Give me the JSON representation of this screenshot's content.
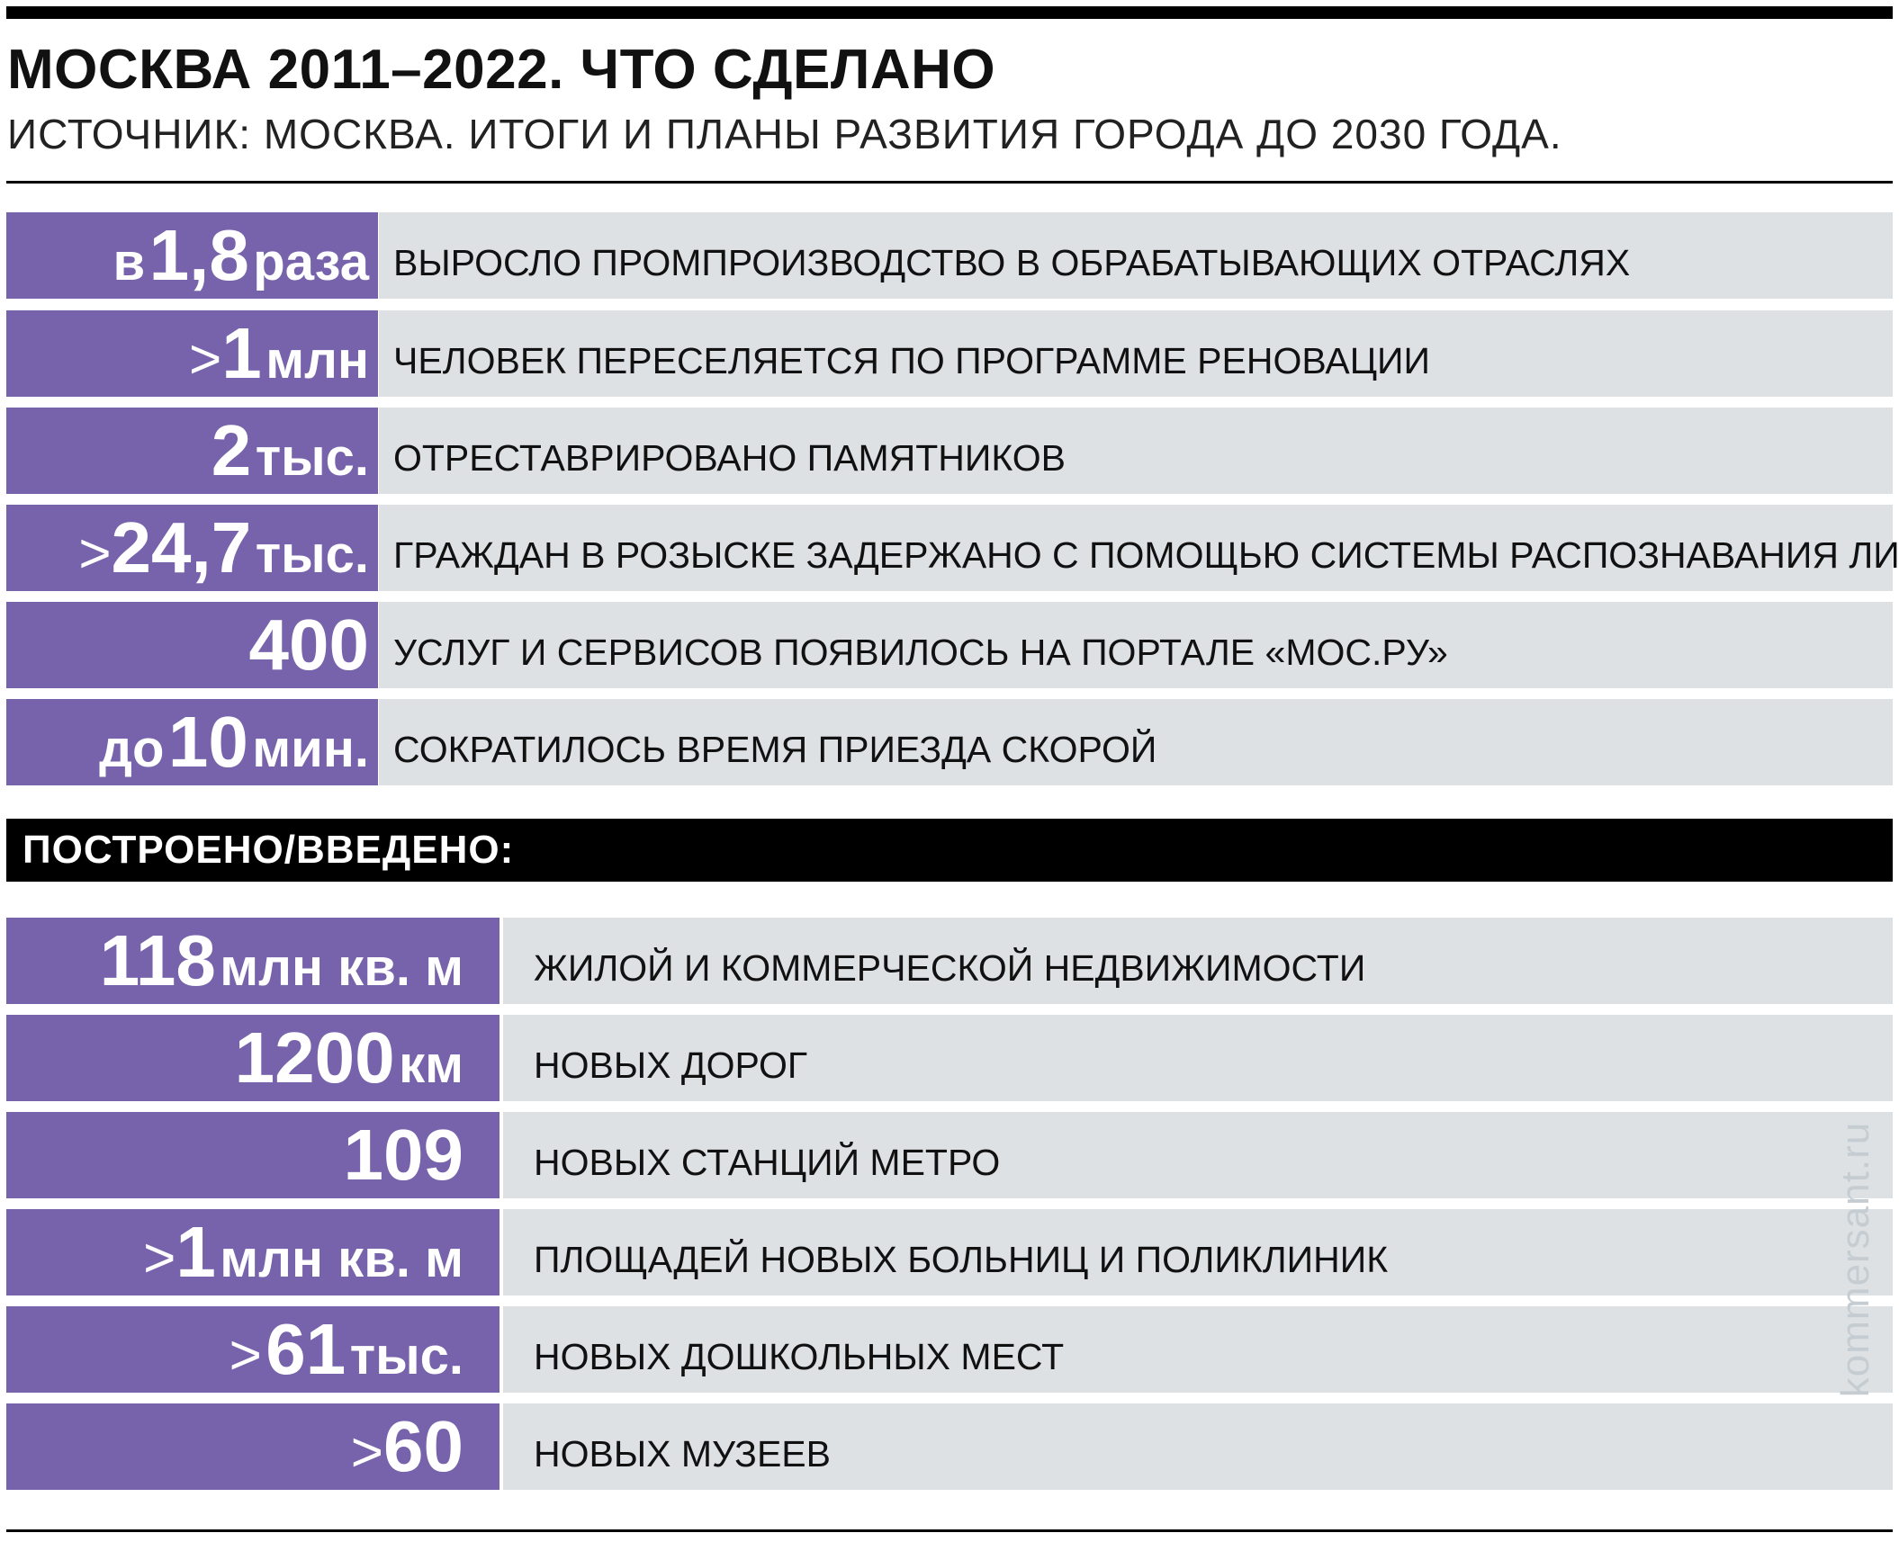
{
  "header": {
    "title": "МОСКВА 2011–2022. ЧТО СДЕЛАНО",
    "source": "ИСТОЧНИК: МОСКВА. ИТОГИ И ПЛАНЫ РАЗВИТИЯ ГОРОДА ДО 2030 ГОДА."
  },
  "achievements": [
    {
      "prefix": "в",
      "number": "1,8",
      "unit": "раза",
      "label": "ВЫРОСЛО ПРОМПРОИЗВОДСТВО В ОБРАБАТЫВАЮЩИХ ОТРАСЛЯХ"
    },
    {
      "prefix": ">",
      "number": "1",
      "unit": "млн",
      "label": "ЧЕЛОВЕК ПЕРЕСЕЛЯЕТСЯ ПО ПРОГРАММЕ РЕНОВАЦИИ"
    },
    {
      "prefix": "",
      "number": "2",
      "unit": "тыс.",
      "label": "ОТРЕСТАВРИРОВАНО ПАМЯТНИКОВ"
    },
    {
      "prefix": ">",
      "number": "24,7",
      "unit": "тыс.",
      "label": "ГРАЖДАН В РОЗЫСКЕ ЗАДЕРЖАНО С ПОМОЩЬЮ СИСТЕМЫ РАСПОЗНАВАНИЯ ЛИЦ"
    },
    {
      "prefix": "",
      "number": "400",
      "unit": "",
      "label": "УСЛУГ И СЕРВИСОВ ПОЯВИЛОСЬ НА ПОРТАЛЕ «МОС.РУ»"
    },
    {
      "prefix": "до",
      "number": "10",
      "unit": "мин.",
      "label": "СОКРАТИЛОСЬ ВРЕМЯ ПРИЕЗДА СКОРОЙ"
    }
  ],
  "built_section": {
    "title": "ПОСТРОЕНО/ВВЕДЕНО:",
    "items": [
      {
        "prefix": "",
        "number": "118",
        "unit": "млн кв. м",
        "label": "ЖИЛОЙ И КОММЕРЧЕСКОЙ НЕДВИЖИМОСТИ"
      },
      {
        "prefix": "",
        "number": "1200",
        "unit": "км",
        "label": "НОВЫХ ДОРОГ"
      },
      {
        "prefix": "",
        "number": "109",
        "unit": "",
        "label": "НОВЫХ СТАНЦИЙ МЕТРО"
      },
      {
        "prefix": ">",
        "number": "1",
        "unit": "млн кв. м",
        "label": "ПЛОЩАДЕЙ НОВЫХ БОЛЬНИЦ И ПОЛИКЛИНИК"
      },
      {
        "prefix": ">",
        "number": "61",
        "unit": "тыс.",
        "label": "НОВЫХ ДОШКОЛЬНЫХ МЕСТ"
      },
      {
        "prefix": ">",
        "number": "60",
        "unit": "",
        "label": "НОВЫХ МУЗЕЕВ"
      }
    ]
  },
  "watermark": "kommersant.ru",
  "colors": {
    "accent": "#7763ab",
    "row_bg": "#dde1e4",
    "rule": "#000000"
  }
}
